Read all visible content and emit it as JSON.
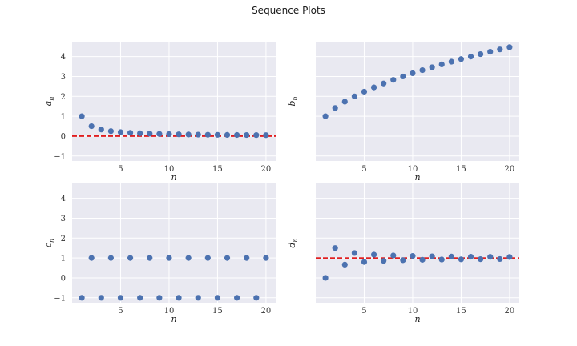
{
  "figure": {
    "title": "Sequence Plots"
  },
  "chart_data": [
    {
      "id": "a",
      "type": "scatter",
      "xlabel": "n",
      "ylabel": "a_n",
      "ylabel_main": "a",
      "ylabel_sub": "n",
      "xlim": [
        0,
        21
      ],
      "ylim": [
        -1.25,
        4.75
      ],
      "xticks": [
        5,
        10,
        15,
        20
      ],
      "yticks": [
        -1,
        0,
        1,
        2,
        3,
        4
      ],
      "show_yticklabels": true,
      "grid": true,
      "point_color": "#4c72b0",
      "hline": {
        "y": 0,
        "color": "#e00000",
        "style": "dashed"
      },
      "x": [
        1,
        2,
        3,
        4,
        5,
        6,
        7,
        8,
        9,
        10,
        11,
        12,
        13,
        14,
        15,
        16,
        17,
        18,
        19,
        20
      ],
      "y": [
        1.0,
        0.5,
        0.333,
        0.25,
        0.2,
        0.167,
        0.143,
        0.125,
        0.111,
        0.1,
        0.091,
        0.083,
        0.077,
        0.071,
        0.067,
        0.063,
        0.059,
        0.056,
        0.053,
        0.05
      ]
    },
    {
      "id": "b",
      "type": "scatter",
      "xlabel": "n",
      "ylabel": "b_n",
      "ylabel_main": "b",
      "ylabel_sub": "n",
      "xlim": [
        0,
        21
      ],
      "ylim": [
        -1.25,
        4.75
      ],
      "xticks": [
        5,
        10,
        15,
        20
      ],
      "yticks": [
        -1,
        0,
        1,
        2,
        3,
        4
      ],
      "show_yticklabels": false,
      "grid": true,
      "point_color": "#4c72b0",
      "x": [
        1,
        2,
        3,
        4,
        5,
        6,
        7,
        8,
        9,
        10,
        11,
        12,
        13,
        14,
        15,
        16,
        17,
        18,
        19,
        20
      ],
      "y": [
        1.0,
        1.414,
        1.732,
        2.0,
        2.236,
        2.449,
        2.646,
        2.828,
        3.0,
        3.162,
        3.317,
        3.464,
        3.606,
        3.742,
        3.873,
        4.0,
        4.123,
        4.243,
        4.359,
        4.472
      ]
    },
    {
      "id": "c",
      "type": "scatter",
      "xlabel": "n",
      "ylabel": "c_n",
      "ylabel_main": "c",
      "ylabel_sub": "n",
      "xlim": [
        0,
        21
      ],
      "ylim": [
        -1.25,
        4.75
      ],
      "xticks": [
        5,
        10,
        15,
        20
      ],
      "yticks": [
        -1,
        0,
        1,
        2,
        3,
        4
      ],
      "show_yticklabels": true,
      "grid": true,
      "point_color": "#4c72b0",
      "x": [
        1,
        2,
        3,
        4,
        5,
        6,
        7,
        8,
        9,
        10,
        11,
        12,
        13,
        14,
        15,
        16,
        17,
        18,
        19,
        20
      ],
      "y": [
        -1,
        1,
        -1,
        1,
        -1,
        1,
        -1,
        1,
        -1,
        1,
        -1,
        1,
        -1,
        1,
        -1,
        1,
        -1,
        1,
        -1,
        1
      ]
    },
    {
      "id": "d",
      "type": "scatter",
      "xlabel": "n",
      "ylabel": "d_n",
      "ylabel_main": "d",
      "ylabel_sub": "n",
      "xlim": [
        0,
        21
      ],
      "ylim": [
        -1.25,
        4.75
      ],
      "xticks": [
        5,
        10,
        15,
        20
      ],
      "yticks": [
        -1,
        0,
        1,
        2,
        3,
        4
      ],
      "show_yticklabels": false,
      "grid": true,
      "point_color": "#4c72b0",
      "hline": {
        "y": 1,
        "color": "#e00000",
        "style": "dashed"
      },
      "x": [
        1,
        2,
        3,
        4,
        5,
        6,
        7,
        8,
        9,
        10,
        11,
        12,
        13,
        14,
        15,
        16,
        17,
        18,
        19,
        20
      ],
      "y": [
        0.0,
        1.5,
        0.667,
        1.25,
        0.8,
        1.167,
        0.857,
        1.125,
        0.889,
        1.1,
        0.909,
        1.083,
        0.923,
        1.071,
        0.933,
        1.063,
        0.941,
        1.056,
        0.947,
        1.05
      ]
    }
  ]
}
